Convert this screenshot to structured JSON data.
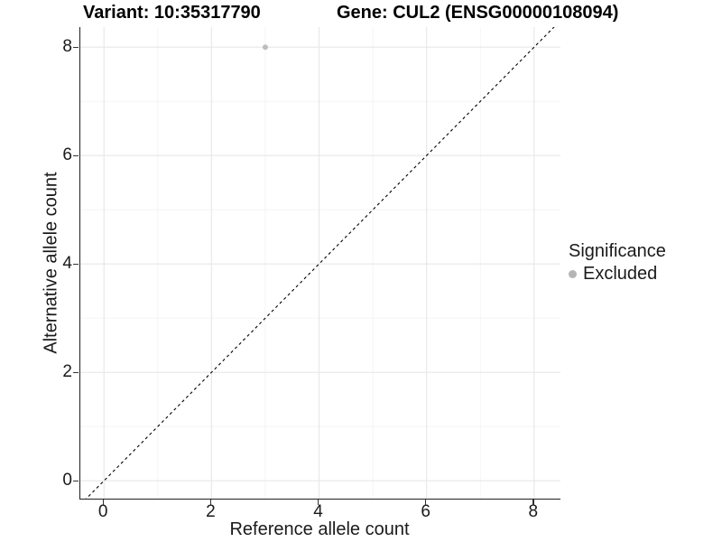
{
  "titles": {
    "variant": "Variant: 10:35317790",
    "gene": "Gene: CUL2 (ENSG00000108094)"
  },
  "legend": {
    "title": "Significance",
    "items": [
      {
        "label": "Excluded",
        "color": "#b5b5b5"
      }
    ]
  },
  "chart_data": {
    "type": "scatter",
    "title": "Variant: 10:35317790   Gene: CUL2 (ENSG00000108094)",
    "xlabel": "Reference allele count",
    "ylabel": "Alternative allele count",
    "xlim": [
      -0.44,
      8.49
    ],
    "ylim": [
      -0.33,
      8.37
    ],
    "x_ticks": [
      0,
      2,
      4,
      6,
      8
    ],
    "y_ticks": [
      0,
      2,
      4,
      6,
      8
    ],
    "x_minor_ticks": [
      1,
      3,
      5,
      7
    ],
    "y_minor_ticks": [
      1,
      3,
      5,
      7
    ],
    "grid": "on",
    "legend_position": "right",
    "series": [
      {
        "name": "Excluded",
        "color": "#bdbdbd",
        "points": [
          {
            "x": 3,
            "y": 8
          }
        ]
      }
    ],
    "reference_line": {
      "kind": "identity y=x",
      "style": "dashed",
      "color": "#000000"
    },
    "colors": {
      "major_grid": "#e7e7e7",
      "minor_grid": "#f2f2f2",
      "axis_line": "#1f1f1f",
      "tick": "#333333"
    }
  }
}
